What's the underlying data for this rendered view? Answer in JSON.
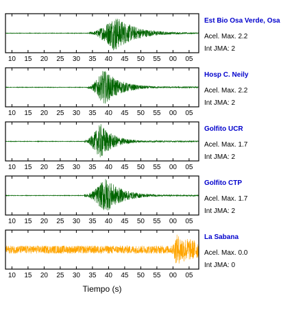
{
  "chart_data": {
    "type": "line",
    "xlabel": "Tiempo (s)",
    "x_tick_labels": [
      "10",
      "15",
      "20",
      "25",
      "30",
      "35",
      "40",
      "45",
      "50",
      "55",
      "00",
      "05"
    ],
    "x_range": [
      8,
      68
    ],
    "colors": {
      "waveform": "#006400",
      "reference": "#FFA500",
      "station_name": "#0000CC",
      "frame": "#000000"
    },
    "series": [
      {
        "name": "Est Bio Osa Verde, Osa",
        "accel_label": "Acel. Max. 2.2",
        "jma_label": "Int JMA: 2",
        "color": "#006400",
        "onset_s": 34,
        "peak_s": 42,
        "amplitude": 1.0,
        "decay": 6
      },
      {
        "name": "Hosp C. Neily",
        "accel_label": "Acel. Max. 2.2",
        "jma_label": "Int JMA: 2",
        "color": "#006400",
        "onset_s": 33.5,
        "peak_s": 38.5,
        "amplitude": 1.0,
        "decay": 5
      },
      {
        "name": "Golfito UCR",
        "accel_label": "Acel. Max. 1.7",
        "jma_label": "Int JMA: 2",
        "color": "#006400",
        "onset_s": 32.5,
        "peak_s": 37.5,
        "amplitude": 1.0,
        "decay": 4
      },
      {
        "name": "Golfito CTP",
        "accel_label": "Acel. Max. 1.7",
        "jma_label": "Int JMA: 2",
        "color": "#006400",
        "onset_s": 32.5,
        "peak_s": 39,
        "amplitude": 1.0,
        "decay": 5
      },
      {
        "name": "La Sabana",
        "accel_label": "Acel. Max. 0.0",
        "jma_label": "Int JMA: 0",
        "color": "#FFA500",
        "onset_s": 59.5,
        "peak_s": 61,
        "amplitude": 0.85,
        "decay": 8,
        "noise_floor": 0.22
      }
    ]
  }
}
